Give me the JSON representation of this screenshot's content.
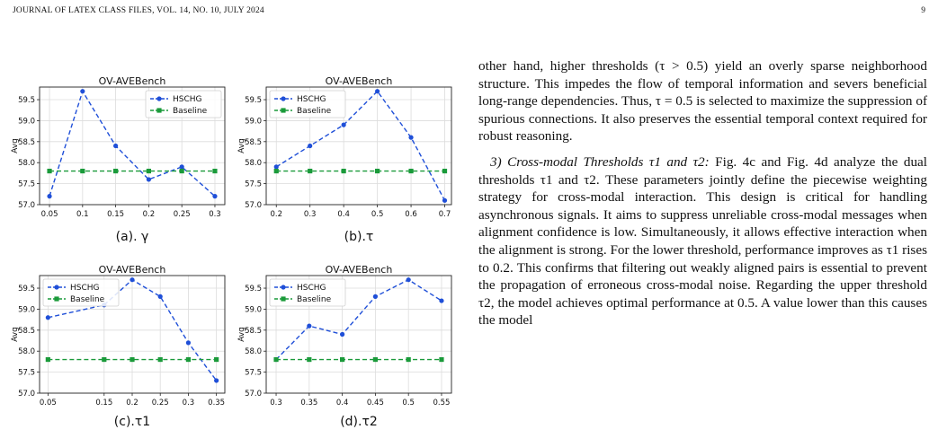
{
  "header": {
    "journal": "JOURNAL OF LATEX CLASS FILES, VOL. 14, NO. 10, JULY 2024",
    "page_number": "9"
  },
  "chart_data": [
    {
      "type": "line",
      "title": "OV-AVEBench",
      "ylabel": "Avg",
      "x": [
        0.05,
        0.1,
        0.15,
        0.2,
        0.25,
        0.3
      ],
      "xticks": [
        "0.05",
        "0.1",
        "0.15",
        "0.2",
        "0.25",
        "0.3"
      ],
      "xlim": [
        0.035,
        0.315
      ],
      "ylim": [
        57.0,
        59.8
      ],
      "yticks": [
        "57.0",
        "57.5",
        "58.0",
        "58.5",
        "59.0",
        "59.5"
      ],
      "grid": true,
      "legend": "top-right",
      "series": [
        {
          "name": "HSCHG",
          "values": [
            57.2,
            59.7,
            58.4,
            57.6,
            57.9,
            57.2
          ],
          "color": "#1f4fd8"
        },
        {
          "name": "Baseline",
          "values": [
            57.8,
            57.8,
            57.8,
            57.8,
            57.8,
            57.8
          ],
          "color": "#1a9a3a"
        }
      ],
      "caption": "(a). γ"
    },
    {
      "type": "line",
      "title": "OV-AVEBench",
      "ylabel": "Avg",
      "x": [
        0.2,
        0.3,
        0.4,
        0.5,
        0.6,
        0.7
      ],
      "xticks": [
        "0.2",
        "0.3",
        "0.4",
        "0.5",
        "0.6",
        "0.7"
      ],
      "xlim": [
        0.17,
        0.72
      ],
      "ylim": [
        57.0,
        59.8
      ],
      "yticks": [
        "57.0",
        "57.5",
        "58.0",
        "58.5",
        "59.0",
        "59.5"
      ],
      "grid": true,
      "legend": "top-left",
      "series": [
        {
          "name": "HSCHG",
          "values": [
            57.9,
            58.4,
            58.9,
            59.7,
            58.6,
            57.1
          ],
          "color": "#1f4fd8"
        },
        {
          "name": "Baseline",
          "values": [
            57.8,
            57.8,
            57.8,
            57.8,
            57.8,
            57.8
          ],
          "color": "#1a9a3a"
        }
      ],
      "caption": "(b).τ"
    },
    {
      "type": "line",
      "title": "OV-AVEBench",
      "ylabel": "Avg",
      "x": [
        0.05,
        0.15,
        0.2,
        0.25,
        0.3,
        0.35
      ],
      "xticks": [
        "0.05",
        "0.15",
        "0.2",
        "0.25",
        "0.3",
        "0.35"
      ],
      "xlim": [
        0.035,
        0.365
      ],
      "ylim": [
        57.0,
        59.8
      ],
      "yticks": [
        "57.0",
        "57.5",
        "58.0",
        "58.5",
        "59.0",
        "59.5"
      ],
      "grid": true,
      "legend": "top-left",
      "series": [
        {
          "name": "HSCHG",
          "values": [
            58.8,
            59.1,
            59.7,
            59.3,
            58.2,
            57.3
          ],
          "color": "#1f4fd8"
        },
        {
          "name": "Baseline",
          "values": [
            57.8,
            57.8,
            57.8,
            57.8,
            57.8,
            57.8
          ],
          "color": "#1a9a3a"
        }
      ],
      "caption": "(c).τ1"
    },
    {
      "type": "line",
      "title": "OV-AVEBench",
      "ylabel": "Avg",
      "x": [
        0.3,
        0.35,
        0.4,
        0.45,
        0.5,
        0.55
      ],
      "xticks": [
        "0.3",
        "0.35",
        "0.4",
        "0.45",
        "0.5",
        "0.55"
      ],
      "xlim": [
        0.285,
        0.565
      ],
      "ylim": [
        57.0,
        59.8
      ],
      "yticks": [
        "57.0",
        "57.5",
        "58.0",
        "58.5",
        "59.0",
        "59.5"
      ],
      "grid": true,
      "legend": "top-left",
      "series": [
        {
          "name": "HSCHG",
          "values": [
            57.8,
            58.6,
            58.4,
            59.3,
            59.7,
            59.2
          ],
          "color": "#1f4fd8"
        },
        {
          "name": "Baseline",
          "values": [
            57.8,
            57.8,
            57.8,
            57.8,
            57.8,
            57.8
          ],
          "color": "#1a9a3a"
        }
      ],
      "caption": "(d).τ2"
    }
  ],
  "body": {
    "p1": "other hand, higher thresholds (τ > 0.5) yield an overly sparse neighborhood structure. This impedes the flow of temporal information and severs beneficial long-range dependencies. Thus, τ = 0.5 is selected to maximize the suppression of spurious connections. It also preserves the essential temporal context required for robust reasoning.",
    "p2_heading": "3) Cross-modal Thresholds τ1 and τ2:",
    "p2": " Fig. 4c and Fig. 4d analyze the dual thresholds τ1 and τ2. These parameters jointly define the piecewise weighting strategy for cross-modal interaction. This design is critical for handling asynchronous signals. It aims to suppress unreliable cross-modal messages when alignment confidence is low. Simultaneously, it allows effective interaction when the alignment is strong. For the lower threshold, performance improves as τ1 rises to 0.2. This confirms that filtering out weakly aligned pairs is essential to prevent the propagation of erroneous cross-modal noise. Regarding the upper threshold τ2, the model achieves optimal performance at 0.5. A value lower than this causes the model"
  }
}
